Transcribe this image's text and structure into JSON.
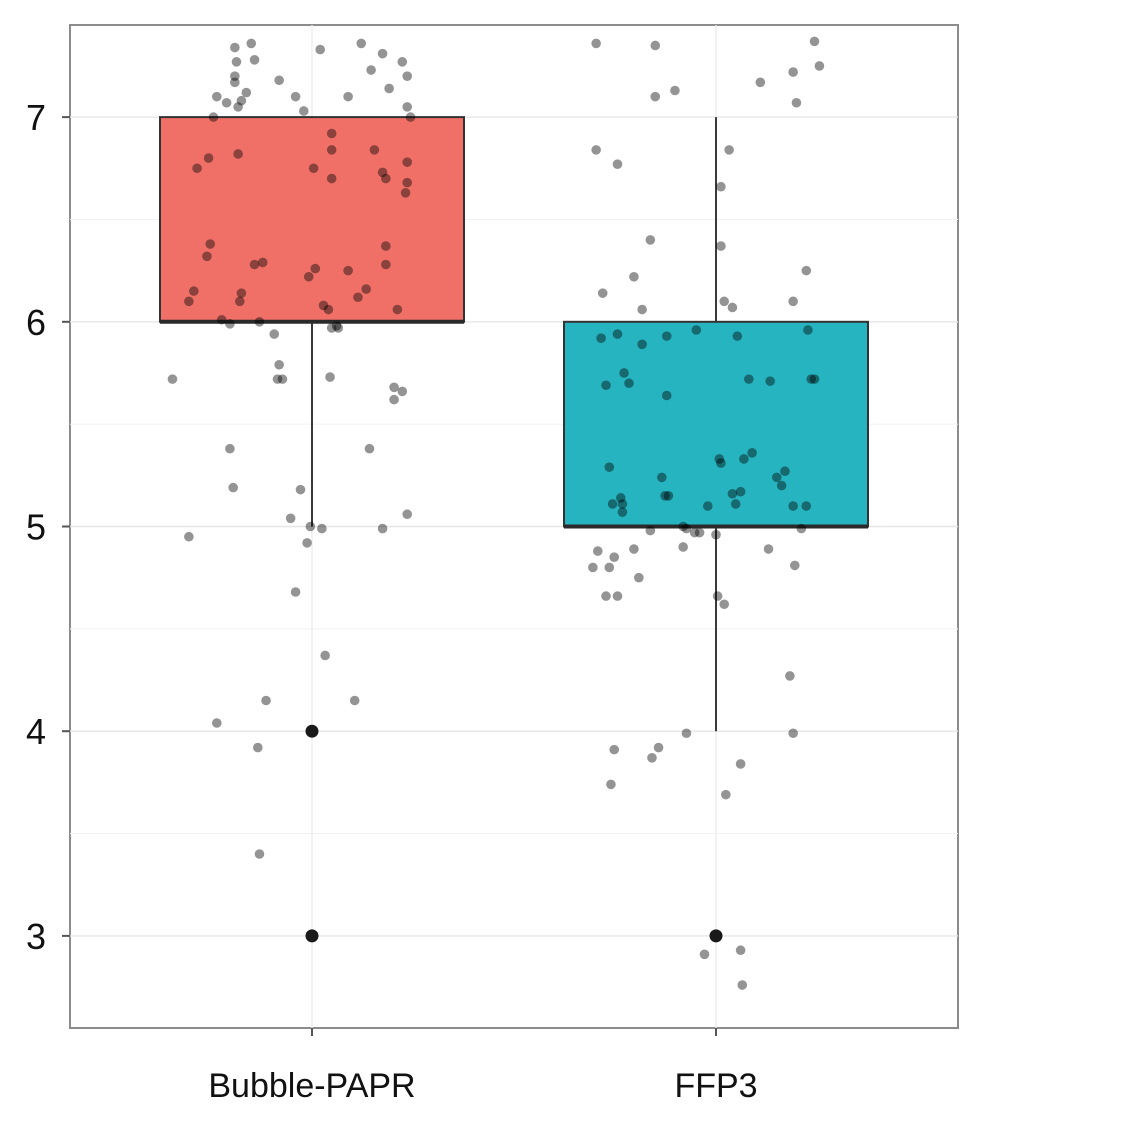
{
  "chart_data": {
    "type": "boxplot",
    "title": "",
    "xlabel": "",
    "ylabel": "",
    "ylim": [
      2.55,
      7.45
    ],
    "yticks": [
      3,
      4,
      5,
      6,
      7
    ],
    "ytick_labels": [
      "3",
      "4",
      "5",
      "6",
      "7"
    ],
    "grid": true,
    "categories": [
      "Bubble-PAPR",
      "FFP3"
    ],
    "boxes": [
      {
        "category": "Bubble-PAPR",
        "color": "#f07068",
        "whisker_low": 5,
        "q1": 6,
        "median": 6,
        "q3": 7,
        "whisker_high": 7,
        "outliers": [
          4,
          3
        ]
      },
      {
        "category": "FFP3",
        "color": "#26b5c0",
        "whisker_low": 4,
        "q1": 5,
        "median": 5,
        "q3": 6,
        "whisker_high": 7,
        "outliers": [
          3
        ]
      }
    ],
    "jitter": [
      {
        "category": "Bubble-PAPR",
        "points": [
          [
            -0.47,
            7.34
          ],
          [
            -0.46,
            7.27
          ],
          [
            -0.37,
            7.36
          ],
          [
            -0.35,
            7.28
          ],
          [
            -0.47,
            7.2
          ],
          [
            -0.47,
            7.17
          ],
          [
            -0.58,
            7.1
          ],
          [
            -0.52,
            7.07
          ],
          [
            -0.4,
            7.12
          ],
          [
            -0.45,
            7.05
          ],
          [
            -0.43,
            7.08
          ],
          [
            -0.2,
            7.18
          ],
          [
            -0.1,
            7.1
          ],
          [
            -0.05,
            7.03
          ],
          [
            0.05,
            7.33
          ],
          [
            0.22,
            7.1
          ],
          [
            0.3,
            7.36
          ],
          [
            0.36,
            7.23
          ],
          [
            0.43,
            7.31
          ],
          [
            0.47,
            7.14
          ],
          [
            0.55,
            7.27
          ],
          [
            0.58,
            7.2
          ],
          [
            0.58,
            7.05
          ],
          [
            0.6,
            7.0
          ],
          [
            -0.6,
            7.0
          ],
          [
            -0.7,
            6.75
          ],
          [
            -0.63,
            6.8
          ],
          [
            -0.45,
            6.82
          ],
          [
            0.01,
            6.75
          ],
          [
            0.12,
            6.92
          ],
          [
            0.12,
            6.84
          ],
          [
            0.12,
            6.7
          ],
          [
            0.38,
            6.84
          ],
          [
            0.43,
            6.73
          ],
          [
            0.45,
            6.7
          ],
          [
            0.57,
            6.63
          ],
          [
            0.58,
            6.68
          ],
          [
            0.58,
            6.78
          ],
          [
            -0.62,
            6.38
          ],
          [
            -0.64,
            6.32
          ],
          [
            -0.72,
            6.15
          ],
          [
            -0.75,
            6.1
          ],
          [
            -0.43,
            6.14
          ],
          [
            -0.44,
            6.1
          ],
          [
            -0.35,
            6.28
          ],
          [
            -0.3,
            6.29
          ],
          [
            -0.02,
            6.22
          ],
          [
            0.02,
            6.26
          ],
          [
            0.07,
            6.08
          ],
          [
            0.1,
            6.06
          ],
          [
            0.22,
            6.25
          ],
          [
            0.28,
            6.12
          ],
          [
            0.33,
            6.16
          ],
          [
            0.45,
            6.37
          ],
          [
            0.45,
            6.28
          ],
          [
            0.52,
            6.06
          ],
          [
            -0.55,
            6.01
          ],
          [
            -0.5,
            5.99
          ],
          [
            -0.32,
            6.0
          ],
          [
            0.12,
            5.97
          ],
          [
            0.15,
            5.98
          ],
          [
            0.16,
            5.97
          ],
          [
            -0.23,
            5.94
          ],
          [
            -0.85,
            5.72
          ],
          [
            -0.2,
            5.79
          ],
          [
            -0.21,
            5.72
          ],
          [
            -0.18,
            5.72
          ],
          [
            0.11,
            5.73
          ],
          [
            0.5,
            5.68
          ],
          [
            0.5,
            5.62
          ],
          [
            0.55,
            5.66
          ],
          [
            -0.5,
            5.38
          ],
          [
            -0.48,
            5.19
          ],
          [
            0.35,
            5.38
          ],
          [
            -0.07,
            5.18
          ],
          [
            -0.13,
            5.04
          ],
          [
            -0.01,
            5.0
          ],
          [
            0.06,
            4.99
          ],
          [
            -0.75,
            4.95
          ],
          [
            0.43,
            4.99
          ],
          [
            0.58,
            5.06
          ],
          [
            -0.03,
            4.92
          ],
          [
            -0.1,
            4.68
          ],
          [
            0.08,
            4.37
          ],
          [
            0.26,
            4.15
          ],
          [
            -0.58,
            4.04
          ],
          [
            -0.28,
            4.15
          ],
          [
            -0.33,
            3.92
          ],
          [
            -0.32,
            3.4
          ]
        ]
      },
      {
        "category": "FFP3",
        "points": [
          [
            -0.73,
            7.36
          ],
          [
            -0.37,
            7.35
          ],
          [
            -0.37,
            7.1
          ],
          [
            -0.25,
            7.13
          ],
          [
            0.27,
            7.17
          ],
          [
            0.47,
            7.22
          ],
          [
            0.49,
            7.07
          ],
          [
            0.6,
            7.37
          ],
          [
            0.63,
            7.25
          ],
          [
            -0.73,
            6.84
          ],
          [
            -0.6,
            6.77
          ],
          [
            0.08,
            6.84
          ],
          [
            0.03,
            6.66
          ],
          [
            -0.4,
            6.4
          ],
          [
            0.03,
            6.37
          ],
          [
            0.55,
            6.25
          ],
          [
            -0.5,
            6.22
          ],
          [
            -0.69,
            6.14
          ],
          [
            0.05,
            6.1
          ],
          [
            0.1,
            6.07
          ],
          [
            0.47,
            6.1
          ],
          [
            -0.45,
            6.06
          ],
          [
            -0.7,
            5.92
          ],
          [
            -0.6,
            5.94
          ],
          [
            -0.45,
            5.89
          ],
          [
            -0.3,
            5.93
          ],
          [
            -0.12,
            5.96
          ],
          [
            0.13,
            5.93
          ],
          [
            0.56,
            5.96
          ],
          [
            -0.56,
            5.75
          ],
          [
            -0.67,
            5.69
          ],
          [
            -0.53,
            5.7
          ],
          [
            -0.3,
            5.64
          ],
          [
            0.2,
            5.72
          ],
          [
            0.33,
            5.71
          ],
          [
            0.58,
            5.72
          ],
          [
            0.6,
            5.72
          ],
          [
            0.02,
            5.33
          ],
          [
            0.03,
            5.31
          ],
          [
            0.17,
            5.33
          ],
          [
            0.22,
            5.36
          ],
          [
            0.42,
            5.27
          ],
          [
            0.37,
            5.24
          ],
          [
            0.4,
            5.2
          ],
          [
            -0.65,
            5.29
          ],
          [
            -0.58,
            5.14
          ],
          [
            -0.63,
            5.11
          ],
          [
            -0.57,
            5.11
          ],
          [
            -0.57,
            5.07
          ],
          [
            -0.31,
            5.15
          ],
          [
            -0.33,
            5.24
          ],
          [
            -0.29,
            5.15
          ],
          [
            -0.05,
            5.1
          ],
          [
            0.1,
            5.16
          ],
          [
            0.12,
            5.11
          ],
          [
            0.15,
            5.17
          ],
          [
            0.47,
            5.1
          ],
          [
            0.55,
            5.1
          ],
          [
            -0.2,
            5.0
          ],
          [
            -0.18,
            4.99
          ],
          [
            -0.13,
            4.97
          ],
          [
            -0.1,
            4.97
          ],
          [
            -0.4,
            4.98
          ],
          [
            0.0,
            4.96
          ],
          [
            -0.72,
            4.88
          ],
          [
            -0.62,
            4.85
          ],
          [
            -0.5,
            4.89
          ],
          [
            -0.2,
            4.9
          ],
          [
            0.32,
            4.89
          ],
          [
            0.52,
            4.99
          ],
          [
            -0.75,
            4.8
          ],
          [
            -0.65,
            4.8
          ],
          [
            -0.67,
            4.66
          ],
          [
            -0.6,
            4.66
          ],
          [
            -0.47,
            4.75
          ],
          [
            0.48,
            4.81
          ],
          [
            0.01,
            4.66
          ],
          [
            0.05,
            4.62
          ],
          [
            0.45,
            4.27
          ],
          [
            -0.18,
            3.99
          ],
          [
            0.47,
            3.99
          ],
          [
            -0.35,
            3.92
          ],
          [
            -0.39,
            3.87
          ],
          [
            -0.62,
            3.91
          ],
          [
            0.15,
            3.84
          ],
          [
            -0.64,
            3.74
          ],
          [
            0.06,
            3.69
          ],
          [
            -0.07,
            2.91
          ],
          [
            0.15,
            2.93
          ],
          [
            0.16,
            2.76
          ]
        ]
      }
    ]
  }
}
